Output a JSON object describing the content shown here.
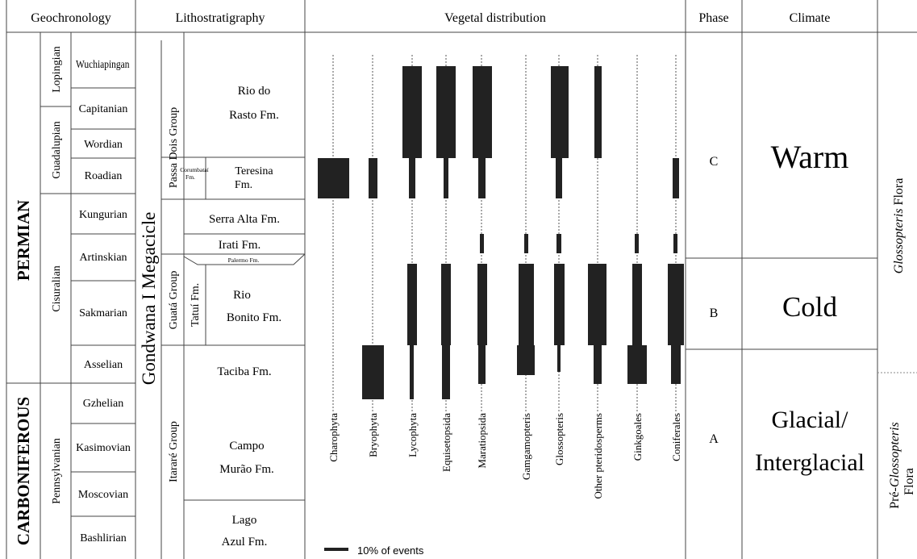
{
  "headers": {
    "geochronology": "Geochronology",
    "lithostratigraphy": "Lithostratigraphy",
    "vegetal": "Vegetal distribution",
    "phase": "Phase",
    "climate": "Climate"
  },
  "periods": {
    "permian": "PERMIAN",
    "carboniferous": "CARBONIFEROUS"
  },
  "epochs": {
    "lopingian": "Lopingian",
    "guadalupian": "Guadalupian",
    "cisuralian": "Cisuralian",
    "pennsylvanian": "Pennsylvanian"
  },
  "stages": [
    "Wuchiapingan",
    "Capitanian",
    "Wordian",
    "Roadian",
    "Kungurian",
    "Artinskian",
    "Sakmarian",
    "Asselian",
    "Gzhelian",
    "Kasimovian",
    "Moscovian",
    "Bashlirian"
  ],
  "megacycle": "Gondwana I Megacicle",
  "groups": {
    "passa_dois": "Passa Dois Group",
    "guata": "Guatá Group",
    "itarare": "Itararé Group"
  },
  "formations": {
    "rio_rasto_1": "Rio do",
    "rio_rasto_2": "Rasto Fm.",
    "corumbatai_1": "Corumbataí",
    "corumbatai_2": "Fm.",
    "teresina_1": "Teresina",
    "teresina_2": "Fm.",
    "serra_alta": "Serra Alta Fm.",
    "irati": "Irati Fm.",
    "palermo": "Palermo Fm.",
    "tatui": "Tatuí Fm.",
    "rio_bonito_1": "Rio",
    "rio_bonito_2": "Bonito Fm.",
    "taciba": "Taciba Fm.",
    "campo_murao_1": "Campo",
    "campo_murao_2": "Murão Fm.",
    "lago_azul_1": "Lago",
    "lago_azul_2": "Azul Fm."
  },
  "taxa": [
    "Charophyta",
    "Bryophyta",
    "Lycophyta",
    "Equisetopsida",
    "Maratiopsida",
    "Gamgamopteris",
    "Glossopteris",
    "Other pteridosperms",
    "Ginkgoales",
    "Coniferales"
  ],
  "phases": [
    "C",
    "B",
    "A"
  ],
  "climates": {
    "warm": "Warm",
    "cold": "Cold",
    "glacial_1": "Glacial/",
    "glacial_2": "Interglacial"
  },
  "flora": {
    "glossopteris_italic": "Glossopteris",
    "glossopteris_rest": "Flora",
    "pre_prefix": "Pré-",
    "pre_italic": "Glossopteris",
    "pre_flora": "Flora"
  },
  "legend": "10% of events"
}
